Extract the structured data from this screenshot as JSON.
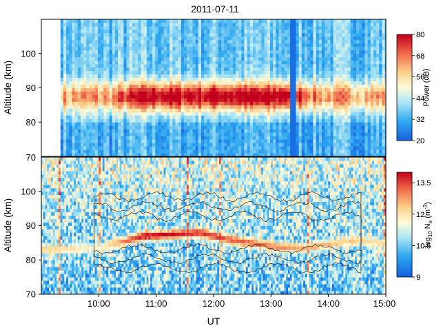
{
  "chart_data": [
    {
      "type": "heatmap",
      "title": "2011-07-11",
      "xlabel": "",
      "ylabel": "Altitude (km)",
      "xlim": [
        "09:00",
        "15:00"
      ],
      "ylim": [
        70,
        110
      ],
      "yticks": [
        "80",
        "90",
        "100"
      ],
      "colorbar": {
        "label": "Power (dB)",
        "ticks": [
          "20",
          "32",
          "44",
          "56",
          "68",
          "80"
        ],
        "range": [
          20,
          80
        ]
      },
      "data_start": "09:20",
      "data_end": "15:00",
      "layer": {
        "peak_altitude_km": 87,
        "peak_power_db": 78,
        "background_power_db": 30,
        "strong_interval": [
          "10:45",
          "13:15"
        ]
      },
      "dropout_bands": [
        "13:22"
      ]
    },
    {
      "type": "heatmap",
      "title": "",
      "xlabel": "UT",
      "ylabel": "Altitude (km)",
      "xlim": [
        "09:00",
        "15:00"
      ],
      "ylim": [
        70,
        110
      ],
      "xticks": [
        "10:00",
        "11:00",
        "12:00",
        "13:00",
        "14:00",
        "15:00"
      ],
      "yticks": [
        "70",
        "80",
        "90",
        "100"
      ],
      "top_ytick": "70",
      "colorbar": {
        "label": "log10 Ne (m-3)",
        "label_parts": {
          "prefix": "log",
          "sub1": "10",
          "mid": " N",
          "sub2": "e",
          "unit": " (m",
          "sup": "-3",
          "end": ")"
        },
        "ticks": [
          "9",
          "10.5",
          "12",
          "13.5"
        ],
        "range": [
          9,
          14
        ]
      },
      "sporadic_layer": [
        {
          "time": "09:00",
          "alt_km": 82.5,
          "logne": 12.3
        },
        {
          "time": "10:00",
          "alt_km": 83.0,
          "logne": 11.6
        },
        {
          "time": "10:45",
          "alt_km": 86.5,
          "logne": 13.9
        },
        {
          "time": "11:15",
          "alt_km": 87.0,
          "logne": 13.9
        },
        {
          "time": "11:45",
          "alt_km": 87.5,
          "logne": 13.6
        },
        {
          "time": "12:15",
          "alt_km": 85.5,
          "logne": 13.3
        },
        {
          "time": "13:00",
          "alt_km": 83.5,
          "logne": 13.0
        },
        {
          "time": "13:30",
          "alt_km": 83.0,
          "logne": 12.6
        },
        {
          "time": "14:00",
          "alt_km": 84.0,
          "logne": 12.4
        },
        {
          "time": "14:30",
          "alt_km": 85.5,
          "logne": 12.2
        },
        {
          "time": "15:00",
          "alt_km": 84.0,
          "logne": 12.0
        }
      ],
      "contour_levels_db": [
        44,
        56,
        68
      ]
    }
  ]
}
